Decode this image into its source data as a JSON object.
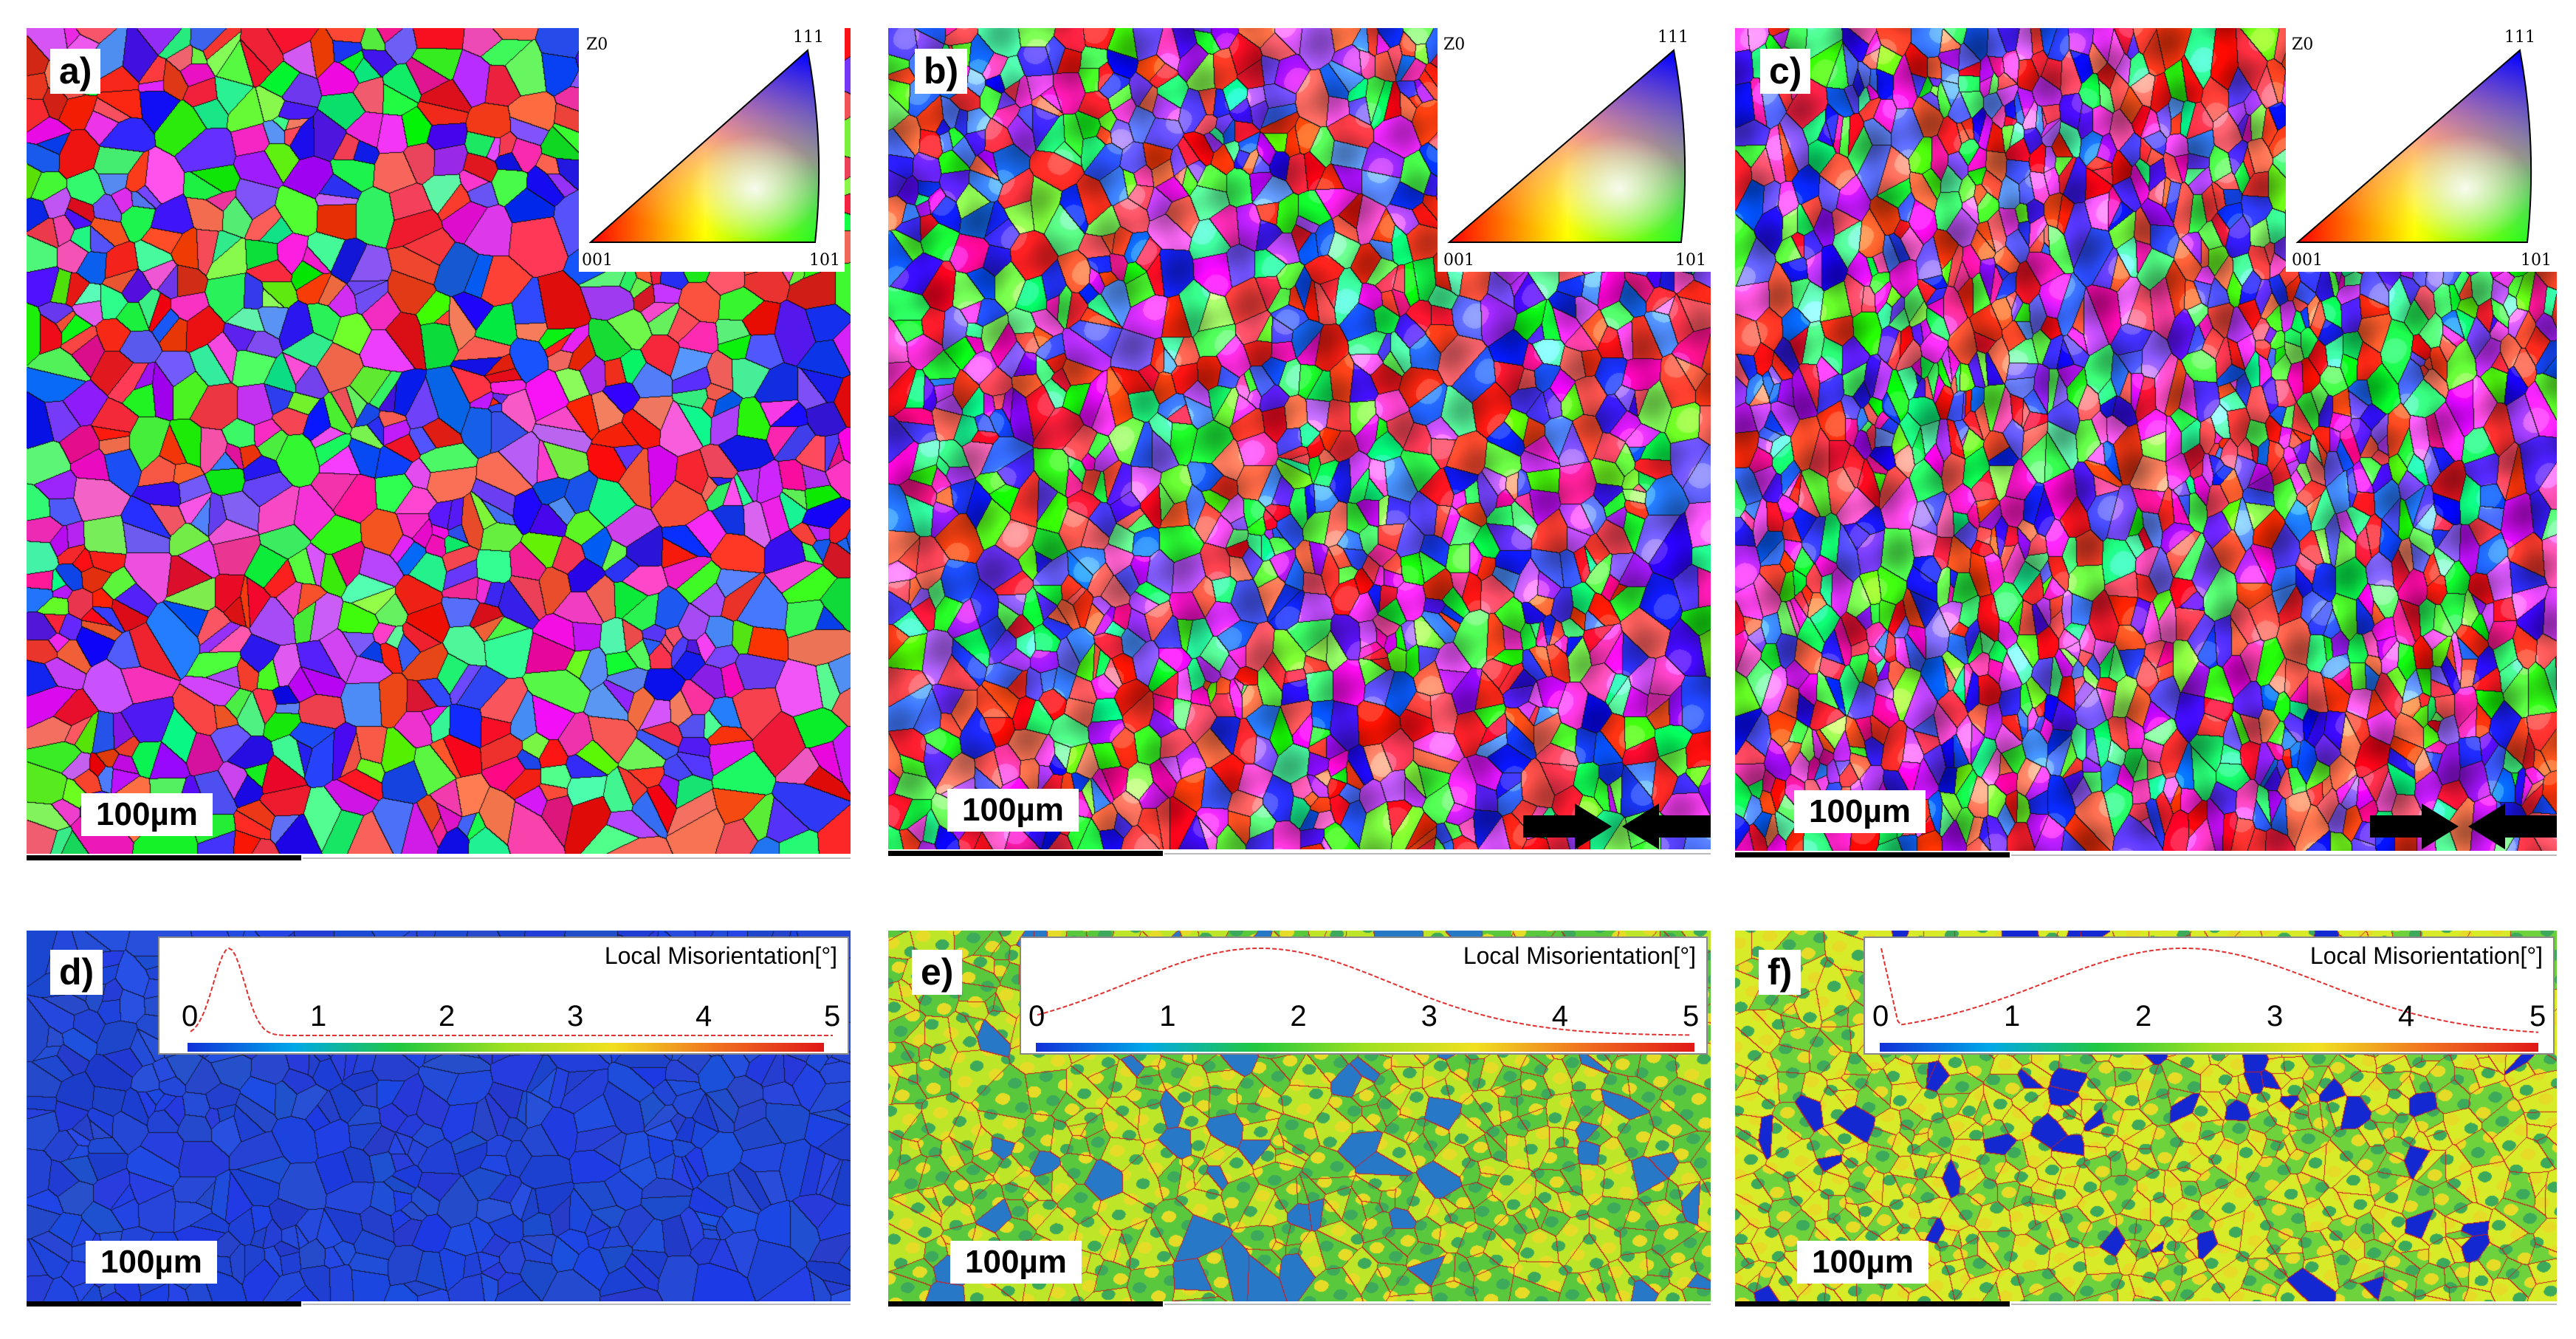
{
  "figure": {
    "top_row": [
      {
        "label": "a)",
        "scale": "100µm",
        "ipf_key": {
          "axis": "Z0",
          "corners": [
            "001",
            "101",
            "111"
          ]
        },
        "compression_arrows": false
      },
      {
        "label": "b)",
        "scale": "100µm",
        "ipf_key": {
          "axis": "Z0",
          "corners": [
            "001",
            "101",
            "111"
          ]
        },
        "compression_arrows": true
      },
      {
        "label": "c)",
        "scale": "100µm",
        "ipf_key": {
          "axis": "Z0",
          "corners": [
            "001",
            "101",
            "111"
          ]
        },
        "compression_arrows": true
      }
    ],
    "bottom_row": [
      {
        "label": "d)",
        "scale": "100µm",
        "histogram": {
          "title": "Local Misorientation[°]",
          "ticks": [
            "0",
            "1",
            "2",
            "3",
            "4",
            "5"
          ]
        }
      },
      {
        "label": "e)",
        "scale": "100µm",
        "histogram": {
          "title": "Local Misorientation[°]",
          "ticks": [
            "0",
            "1",
            "2",
            "3",
            "4",
            "5"
          ]
        }
      },
      {
        "label": "f)",
        "scale": "100µm",
        "histogram": {
          "title": "Local Misorientation[°]",
          "ticks": [
            "0",
            "1",
            "2",
            "3",
            "4",
            "5"
          ]
        }
      }
    ],
    "colors": {
      "kam_low": "#1838d0",
      "kam_mid": "#60c830",
      "kam_high": "#e02020",
      "colorbar": [
        "#1230d8",
        "#00a8e8",
        "#20c840",
        "#9ee020",
        "#f0e020",
        "#f07020",
        "#e01818"
      ]
    }
  }
}
